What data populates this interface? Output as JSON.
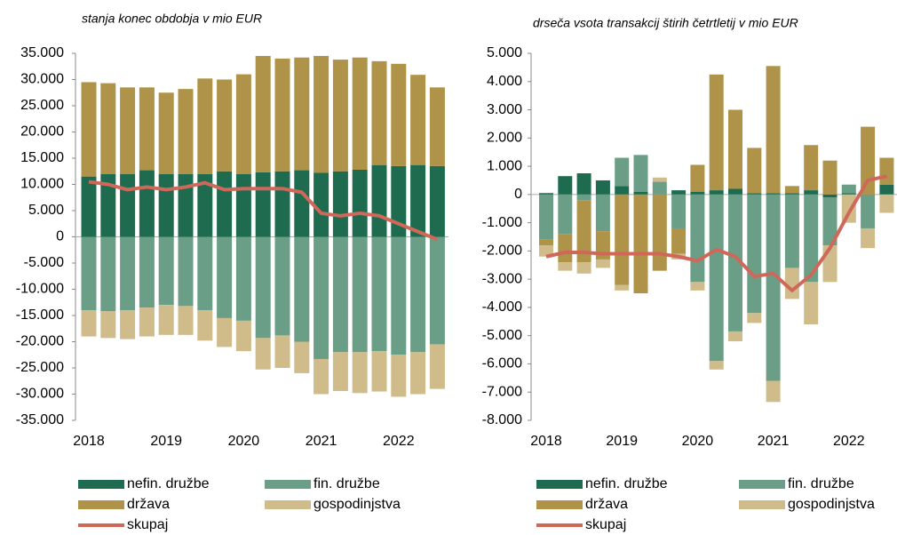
{
  "chart_data": [
    {
      "type": "bar",
      "stacked": true,
      "subtitle": "stanja konec obdobja v mio EUR",
      "categories": [
        "2018",
        null,
        null,
        null,
        "2019",
        null,
        null,
        null,
        "2020",
        null,
        null,
        null,
        "2021",
        null,
        null,
        null,
        "2022",
        null,
        null
      ],
      "series": [
        {
          "name": "nefin. družbe",
          "color": "#1e6b4f",
          "values": [
            11500,
            12000,
            12000,
            12700,
            12000,
            12000,
            12000,
            12500,
            12000,
            12300,
            12500,
            12700,
            12200,
            12500,
            12800,
            13700,
            13500,
            13700,
            13500
          ]
        },
        {
          "name": "fin. družbe",
          "color": "#6b9e87",
          "values": [
            -14000,
            -14200,
            -14000,
            -13500,
            -13000,
            -13200,
            -14000,
            -15500,
            -16000,
            -19300,
            -18800,
            -20000,
            -23300,
            -22000,
            -22000,
            -21800,
            -22500,
            -22000,
            -20500
          ]
        },
        {
          "name": "država",
          "color": "#ae9348",
          "values": [
            18000,
            17300,
            16500,
            15800,
            15500,
            16200,
            18200,
            17500,
            19000,
            22200,
            21500,
            21500,
            22300,
            21300,
            21400,
            19800,
            19500,
            17200,
            15000
          ]
        },
        {
          "name": "gospodinjstva",
          "color": "#cfbc8a",
          "values": [
            -5000,
            -5100,
            -5500,
            -5500,
            -5700,
            -5500,
            -5800,
            -5500,
            -5800,
            -6000,
            -6200,
            -6000,
            -6700,
            -7400,
            -7800,
            -7700,
            -8000,
            -8000,
            -8500
          ]
        },
        {
          "name": "skupaj",
          "color": "#d0685a",
          "kind": "line",
          "values": [
            10500,
            10000,
            9000,
            9500,
            9000,
            9500,
            10300,
            9000,
            9200,
            9200,
            9200,
            8500,
            4500,
            4000,
            4500,
            4000,
            2500,
            1000,
            -500
          ]
        }
      ],
      "ylim": [
        -35000,
        35000
      ],
      "yticks": [
        {
          "value": -35000,
          "label": "-35.000"
        },
        {
          "value": -30000,
          "label": "-30.000"
        },
        {
          "value": -25000,
          "label": "-25.000"
        },
        {
          "value": -20000,
          "label": "-20.000"
        },
        {
          "value": -15000,
          "label": "-15.000"
        },
        {
          "value": -10000,
          "label": "-10.000"
        },
        {
          "value": -5000,
          "label": "-5.000"
        },
        0,
        {
          "value": 5000,
          "label": "5.000"
        },
        {
          "value": 10000,
          "label": "10.000"
        },
        {
          "value": 15000,
          "label": "15.000"
        },
        {
          "value": 20000,
          "label": "20.000"
        },
        {
          "value": 25000,
          "label": "25.000"
        },
        {
          "value": 30000,
          "label": "30.000"
        },
        {
          "value": 35000,
          "label": "35.000"
        }
      ]
    },
    {
      "type": "bar",
      "stacked": true,
      "subtitle": "drseča vsota transakcij štirih četrtletij v mio EUR",
      "categories": [
        "2018",
        null,
        null,
        null,
        "2019",
        null,
        null,
        null,
        "2020",
        null,
        null,
        null,
        "2021",
        null,
        null,
        null,
        "2022",
        null,
        null
      ],
      "series": [
        {
          "name": "nefin. družbe",
          "color": "#1e6b4f",
          "values": [
            50,
            650,
            750,
            500,
            300,
            100,
            0,
            150,
            100,
            150,
            200,
            50,
            50,
            50,
            150,
            -100,
            50,
            0,
            350
          ]
        },
        {
          "name": "fin. družbe",
          "color": "#6b9e87",
          "values": [
            -1600,
            -1400,
            -200,
            -1300,
            1000,
            1300,
            450,
            -1200,
            -3100,
            -5900,
            -4850,
            -4200,
            -6600,
            -2600,
            -3100,
            -1700,
            300,
            -1200,
            0
          ]
        },
        {
          "name": "država",
          "color": "#ae9348",
          "values": [
            -200,
            -1000,
            -2200,
            -1000,
            -3200,
            -3500,
            -2700,
            -900,
            950,
            4100,
            2800,
            1600,
            4500,
            250,
            1600,
            1200,
            0,
            2400,
            950
          ]
        },
        {
          "name": "gospodinjstva",
          "color": "#cfbc8a",
          "values": [
            -400,
            -300,
            -400,
            -300,
            -200,
            0,
            150,
            -200,
            -300,
            -300,
            -350,
            -350,
            -750,
            -1100,
            -1500,
            -1300,
            -1000,
            -700,
            -650
          ]
        },
        {
          "name": "skupaj",
          "color": "#d0685a",
          "kind": "line",
          "values": [
            -2200,
            -2050,
            -2050,
            -2100,
            -2100,
            -2100,
            -2100,
            -2200,
            -2350,
            -1950,
            -2200,
            -2900,
            -2800,
            -3400,
            -2850,
            -1900,
            -650,
            500,
            650
          ]
        }
      ],
      "ylim": [
        -8000,
        5000
      ],
      "yticks": [
        {
          "value": -8000,
          "label": "-8.000"
        },
        {
          "value": -7000,
          "label": "-7.000"
        },
        {
          "value": -6000,
          "label": "-6.000"
        },
        {
          "value": -5000,
          "label": "-5.000"
        },
        {
          "value": -4000,
          "label": "-4.000"
        },
        {
          "value": -3000,
          "label": "-3.000"
        },
        {
          "value": -2000,
          "label": "-2.000"
        },
        {
          "value": -1000,
          "label": "-1.000"
        },
        0,
        {
          "value": 1000,
          "label": "1.000"
        },
        {
          "value": 2000,
          "label": "2.000"
        },
        {
          "value": 3000,
          "label": "3.000"
        },
        {
          "value": 4000,
          "label": "4.000"
        },
        {
          "value": 5000,
          "label": "5.000"
        }
      ]
    }
  ]
}
